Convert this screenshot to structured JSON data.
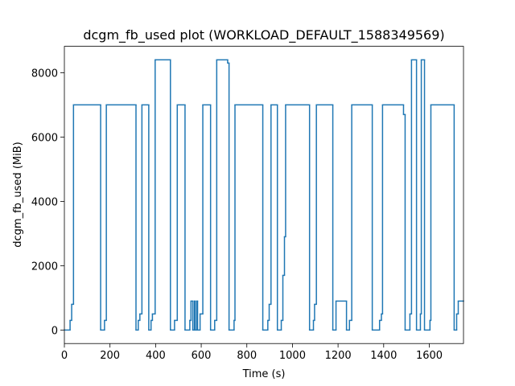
{
  "chart_data": {
    "type": "step",
    "title": "dcgm_fb_used plot (WORKLOAD_DEFAULT_1588349569)",
    "x_label": "Time (s)",
    "y_label": "dcgm_fb_used (MiB)",
    "color": "#1f77b4",
    "x": [
      0,
      25,
      32,
      40,
      159,
      176,
      184,
      314,
      324,
      331,
      340,
      370,
      380,
      386,
      398,
      465,
      483,
      495,
      529,
      550,
      555,
      563,
      570,
      573,
      580,
      584,
      595,
      607,
      641,
      659,
      668,
      716,
      722,
      744,
      748,
      870,
      892,
      898,
      906,
      934,
      951,
      958,
      965,
      970,
      1075,
      1092,
      1097,
      1105,
      1177,
      1191,
      1237,
      1250,
      1260,
      1350,
      1382,
      1390,
      1395,
      1487,
      1494,
      1515,
      1522,
      1544,
      1561,
      1565,
      1579,
      1603,
      1607,
      1709,
      1720,
      1727
    ],
    "values": [
      0,
      300,
      800,
      7000,
      0,
      300,
      7000,
      0,
      300,
      500,
      7000,
      0,
      300,
      500,
      8400,
      0,
      300,
      7000,
      0,
      300,
      900,
      0,
      900,
      0,
      900,
      0,
      500,
      7000,
      0,
      300,
      8400,
      8300,
      0,
      300,
      7000,
      0,
      300,
      800,
      7000,
      0,
      300,
      1700,
      2900,
      7000,
      0,
      300,
      800,
      7000,
      0,
      900,
      0,
      300,
      7000,
      0,
      300,
      500,
      7000,
      6700,
      0,
      500,
      8400,
      0,
      500,
      8400,
      0,
      300,
      7000,
      0,
      500,
      900
    ],
    "xlim": [
      0,
      1750
    ],
    "ylim": [
      -420,
      8820
    ],
    "xticks": [
      0,
      200,
      400,
      600,
      800,
      1000,
      1200,
      1400,
      1600
    ],
    "yticks": [
      0,
      2000,
      4000,
      6000,
      8000
    ]
  }
}
